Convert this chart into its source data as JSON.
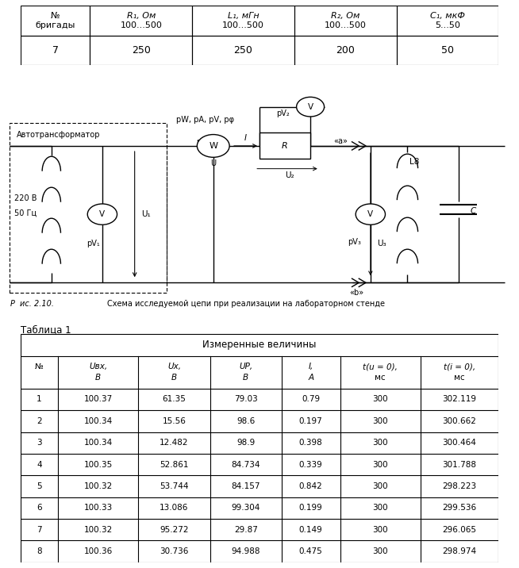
{
  "top_table_col1_line1": "№",
  "top_table_col1_line2": "бригады",
  "top_table_headers": [
    "R₁, Ом",
    "L₁, мГн",
    "R₂, Ом",
    "C₁, мкФ"
  ],
  "top_table_ranges": [
    "100...500",
    "100...500",
    "100...500",
    "5...50"
  ],
  "top_table_values": [
    "7",
    "250",
    "250",
    "200",
    "50"
  ],
  "fig_caption_r": "Рис.",
  "fig_caption_num": "2.10.",
  "fig_caption_text": "Схема исследуемой цепи при реализации на лабораторном стенде",
  "table1_title": "Таблица 1",
  "table1_header_main": "Измеренные величины",
  "table1_data": [
    [
      "1",
      "100.37",
      "61.35",
      "79.03",
      "0.79",
      "300",
      "302.119"
    ],
    [
      "2",
      "100.34",
      "15.56",
      "98.6",
      "0.197",
      "300",
      "300.662"
    ],
    [
      "3",
      "100.34",
      "12.482",
      "98.9",
      "0.398",
      "300",
      "300.464"
    ],
    [
      "4",
      "100.35",
      "52.861",
      "84.734",
      "0.339",
      "300",
      "301.788"
    ],
    [
      "5",
      "100.32",
      "53.744",
      "84.157",
      "0.842",
      "300",
      "298.223"
    ],
    [
      "6",
      "100.33",
      "13.086",
      "99.304",
      "0.199",
      "300",
      "299.536"
    ],
    [
      "7",
      "100.32",
      "95.272",
      "29.87",
      "0.149",
      "300",
      "296.065"
    ],
    [
      "8",
      "100.36",
      "30.736",
      "94.988",
      "0.475",
      "300",
      "298.974"
    ]
  ]
}
